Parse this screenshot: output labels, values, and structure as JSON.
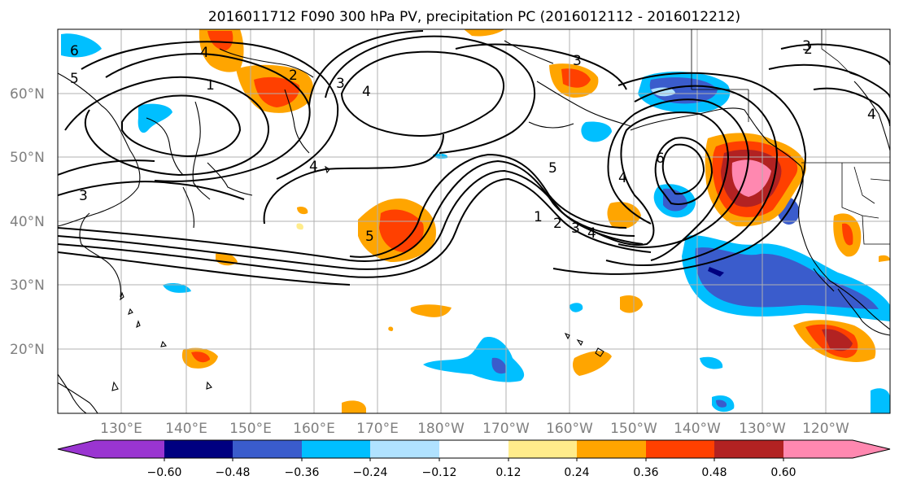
{
  "title": "2016011712 F090 300 hPa PV, precipitation PC (2016012112 - 2016012212)",
  "lat_labels": [
    "60°N",
    "50°N",
    "40°N",
    "30°N",
    "20°N"
  ],
  "lon_labels": [
    "130°E",
    "140°E",
    "150°E",
    "160°E",
    "170°E",
    "180°W",
    "170°W",
    "160°W",
    "150°W",
    "140°W",
    "130°W",
    "120°W"
  ],
  "colorbar": {
    "tick_labels": [
      "−0.60",
      "−0.48",
      "−0.36",
      "−0.24",
      "−0.12",
      "0.12",
      "0.24",
      "0.36",
      "0.48",
      "0.60"
    ],
    "colors": [
      "#9a35d1",
      "#000080",
      "#3a5ccc",
      "#00bfff",
      "#b0e2ff",
      "#ffffff",
      "#ffec8b",
      "#ffa500",
      "#ff4000",
      "#b22222",
      "#ff88b0"
    ]
  },
  "pv_contour_labels": [
    "6",
    "5",
    "4",
    "1",
    "2",
    "3",
    "3",
    "4",
    "5",
    "4",
    "3",
    "6",
    "5",
    "4",
    "1",
    "2",
    "3",
    "4",
    "2",
    "3",
    "4"
  ]
}
